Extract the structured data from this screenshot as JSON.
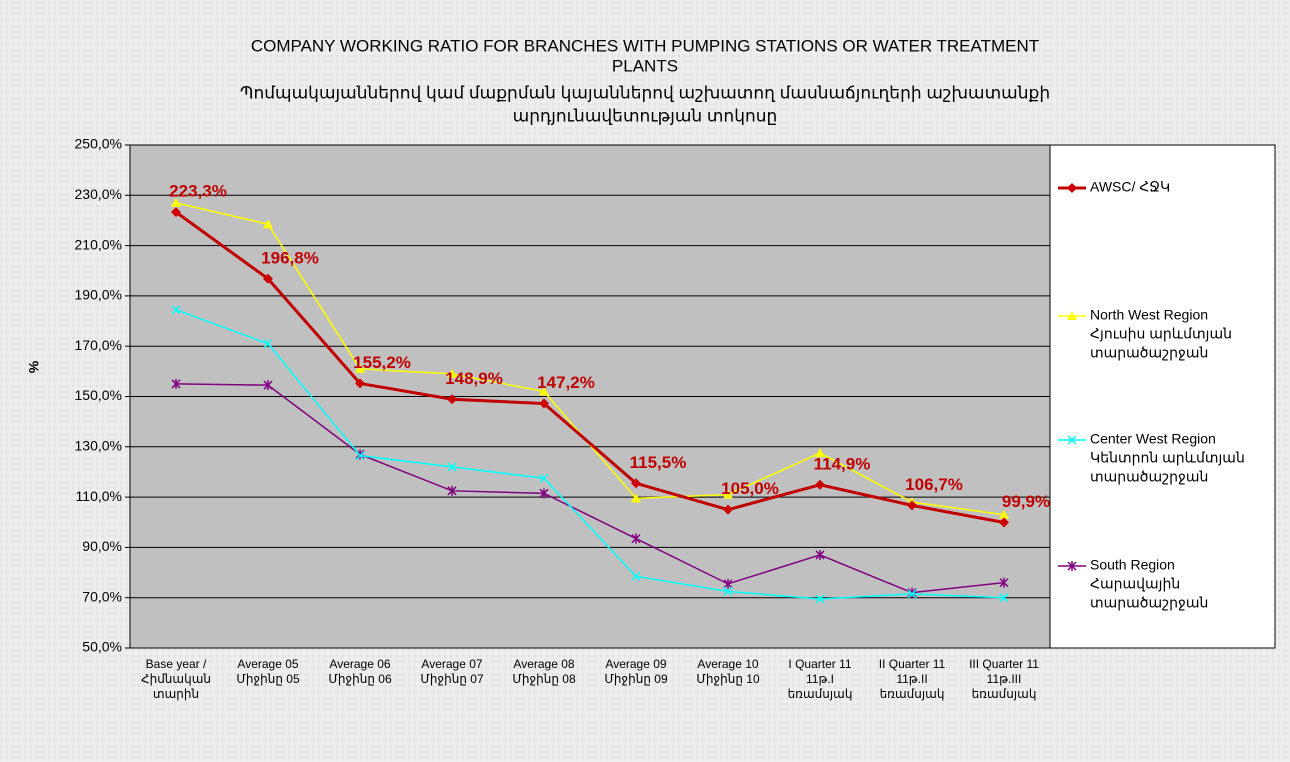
{
  "chart_data": {
    "type": "line",
    "title": [
      "COMPANY WORKING RATIO FOR BRANCHES WITH PUMPING STATIONS OR WATER TREATMENT",
      "PLANTS"
    ],
    "subtitle": [
      "Պոմպակայաններով կամ մաքրման կայաններով աշխատող մասնաճյուղերի աշխատանքի",
      "արդյունավետության տոկոսը"
    ],
    "y_label": "%",
    "categories": [
      [
        "Base year /",
        "Հիմնական",
        "տարին"
      ],
      [
        "Average 05",
        "Միջինը 05"
      ],
      [
        "Average 06",
        "Միջինը 06"
      ],
      [
        "Average 07",
        "Միջինը 07"
      ],
      [
        "Average 08",
        "Միջինը 08"
      ],
      [
        "Average 09",
        "Միջինը 09"
      ],
      [
        "Average 10",
        "Միջինը 10"
      ],
      [
        "I Quarter 11",
        "11թ.I",
        "եռամսյակ"
      ],
      [
        "II Quarter 11",
        "11թ.II",
        "եռամսյակ"
      ],
      [
        "III Quarter 11",
        "11թ.III",
        "եռամսյակ"
      ]
    ],
    "ylim": [
      50,
      250
    ],
    "yticks": [
      {
        "value": 50,
        "label": "50,0%"
      },
      {
        "value": 70,
        "label": "70,0%"
      },
      {
        "value": 90,
        "label": "90,0%"
      },
      {
        "value": 110,
        "label": "110,0%"
      },
      {
        "value": 130,
        "label": "130,0%"
      },
      {
        "value": 150,
        "label": "150,0%"
      },
      {
        "value": 170,
        "label": "170,0%"
      },
      {
        "value": 190,
        "label": "190,0%"
      },
      {
        "value": 210,
        "label": "210,0%"
      },
      {
        "value": 230,
        "label": "230,0%"
      },
      {
        "value": 250,
        "label": "250,0%"
      }
    ],
    "grid": true,
    "legend": "right",
    "series": [
      {
        "name": [
          "AWSC/ ՀՋԿ"
        ],
        "color": "#cc0000",
        "marker": "diamond",
        "values": [
          223.3,
          196.8,
          155.2,
          148.9,
          147.2,
          115.5,
          105.0,
          114.9,
          106.7,
          99.9
        ],
        "value_labels": [
          "223,3%",
          "196,8%",
          "155,2%",
          "148,9%",
          "147,2%",
          "115,5%",
          "105,0%",
          "114,9%",
          "106,7%",
          "99,9%"
        ]
      },
      {
        "name": [
          "North West Region",
          "Հյուսիս արևմտյան",
          "տարածաշրջան"
        ],
        "color": "#ffff00",
        "marker": "triangle",
        "values": [
          227,
          218.5,
          161,
          159,
          152,
          109.5,
          111,
          127.5,
          108,
          103
        ]
      },
      {
        "name": [
          "Center West Region",
          "Կենտրոն արևմտյան",
          "տարածաշրջան"
        ],
        "color": "#00ffff",
        "marker": "x",
        "values": [
          184.5,
          171,
          126.5,
          122,
          117.5,
          78.5,
          72.5,
          69.5,
          71.5,
          70
        ]
      },
      {
        "name": [
          "South Region",
          "Հարավային",
          "տարածաշրջան"
        ],
        "color": "#800080",
        "marker": "star",
        "values": [
          155,
          154.5,
          127,
          112.5,
          111.5,
          93.5,
          75.5,
          87,
          72,
          76
        ]
      }
    ]
  }
}
